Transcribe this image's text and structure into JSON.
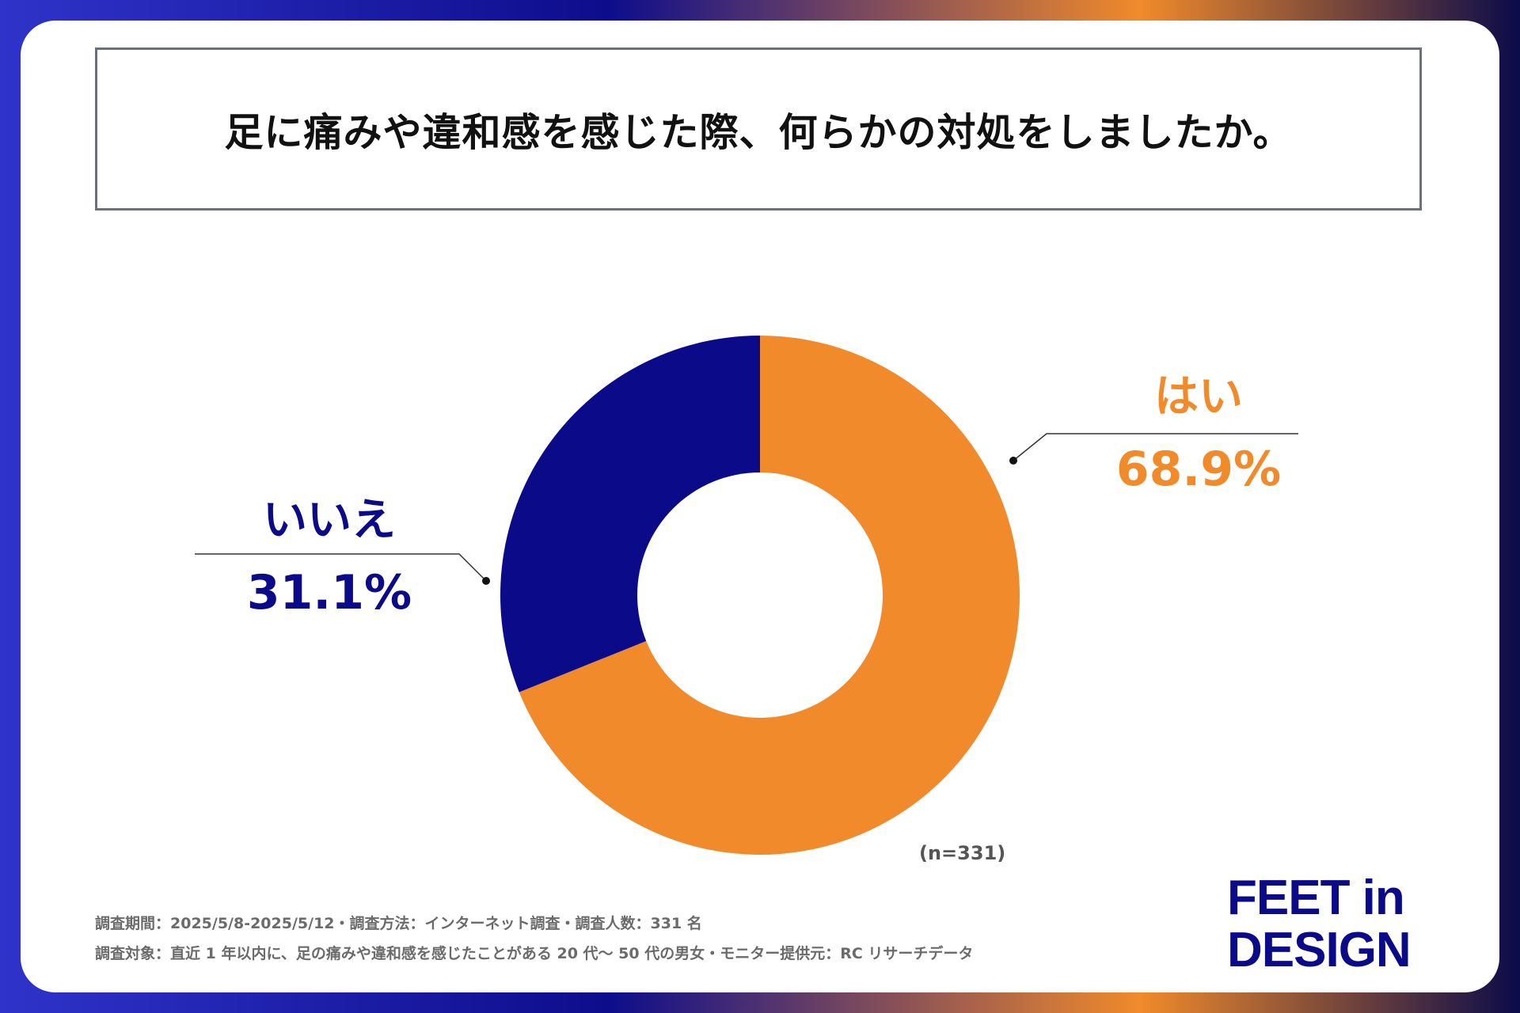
{
  "chart_data": {
    "type": "pie",
    "title": "足に痛みや違和感を感じた際、何らかの対処をしましたか。",
    "categories": [
      "はい",
      "いいえ"
    ],
    "values": [
      68.9,
      31.1
    ],
    "value_labels": [
      "68.9%",
      "31.1%"
    ],
    "colors": [
      "#f08a2b",
      "#0b0b8a"
    ],
    "donut": true,
    "note": "(n=331)"
  },
  "footer": {
    "line1": "調査期間：2025/5/8-2025/5/12・調査方法：インターネット調査・調査人数：331 名",
    "line2": "調査対象：直近 1 年以内に、足の痛みや違和感を感じたことがある 20 代〜 50 代の男女・モニター提供元：RC リサーチデータ"
  },
  "logo": {
    "line1": "FEET in",
    "line2": "DESIGN"
  }
}
